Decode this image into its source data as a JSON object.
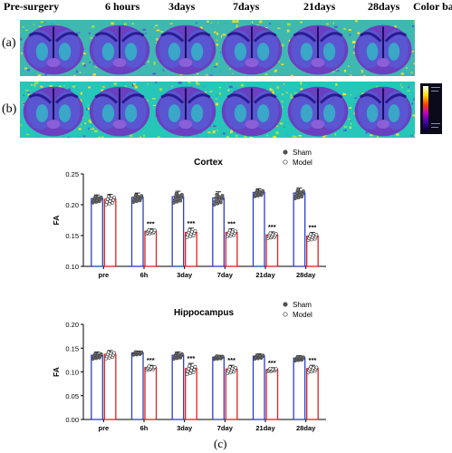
{
  "header": {
    "columns": [
      "Pre-surgery",
      "6 hours",
      "3days",
      "7days",
      "21days",
      "28days",
      "Color bar"
    ]
  },
  "panels": {
    "a": "(a)",
    "b": "(b)",
    "c": "(c)"
  },
  "colors": {
    "sham": "#2b3fc7",
    "model": "#e02020",
    "sig": "#000000"
  },
  "chart_data": [
    {
      "type": "bar",
      "title": "Cortex",
      "ylabel": "FA",
      "xlabel": "",
      "categories": [
        "pre",
        "6h",
        "3day",
        "7day",
        "21day",
        "28day"
      ],
      "ylim": [
        0.1,
        0.25
      ],
      "yticks": [
        "0.10",
        "0.15",
        "0.20",
        "0.25"
      ],
      "legend": {
        "position": "top-right",
        "entries": [
          "Sham",
          "Model"
        ]
      },
      "series": [
        {
          "name": "Sham",
          "values": [
            0.21,
            0.212,
            0.213,
            0.211,
            0.22,
            0.219
          ],
          "errors": [
            0.006,
            0.007,
            0.009,
            0.01,
            0.006,
            0.008
          ]
        },
        {
          "name": "Model",
          "values": [
            0.209,
            0.157,
            0.155,
            0.155,
            0.151,
            0.149
          ],
          "errors": [
            0.008,
            0.004,
            0.007,
            0.006,
            0.005,
            0.006
          ]
        }
      ],
      "significance": [
        "",
        "***",
        "***",
        "***",
        "***",
        "***"
      ]
    },
    {
      "type": "bar",
      "title": "Hippocampus",
      "ylabel": "FA",
      "xlabel": "",
      "categories": [
        "pre",
        "6h",
        "3day",
        "7day",
        "21day",
        "28day"
      ],
      "ylim": [
        0.0,
        0.2
      ],
      "yticks": [
        "0.00",
        "0.05",
        "0.10",
        "0.15",
        "0.20"
      ],
      "legend": {
        "position": "top-right",
        "entries": [
          "Sham",
          "Model"
        ]
      },
      "series": [
        {
          "name": "Sham",
          "values": [
            0.135,
            0.14,
            0.135,
            0.131,
            0.133,
            0.129
          ],
          "errors": [
            0.007,
            0.004,
            0.007,
            0.004,
            0.005,
            0.005
          ]
        },
        {
          "name": "Model",
          "values": [
            0.137,
            0.109,
            0.107,
            0.106,
            0.105,
            0.107
          ],
          "errors": [
            0.008,
            0.005,
            0.011,
            0.008,
            0.004,
            0.007
          ]
        }
      ],
      "significance": [
        "",
        "***",
        "***",
        "***",
        "***",
        "***"
      ]
    }
  ]
}
